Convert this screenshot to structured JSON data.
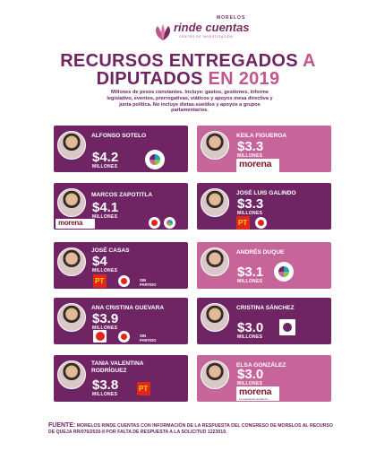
{
  "brand": {
    "top": "MORELOS",
    "name": "rinde cuentas",
    "sub": "CENTRO DE INVESTIGACIÓN"
  },
  "title": {
    "line1_a": "RECURSOS ENTREGADOS",
    "line1_b": "A",
    "line2_a": "DIPUTADOS",
    "line2_b": "EN 2019"
  },
  "description": "Millones de pesos constantes. Incluye: gastos, gestiones, informe legislativo, eventos, prerrogativas, viáticos y apoyos mesa directiva y junta política. No incluye dietas-sueldos y apoyos a grupos parlamentarios.",
  "units": "MILLONES",
  "left": [
    {
      "name": "ALFONSO SOTELO",
      "amount": "$4.2",
      "logos": [
        "movimiento-ciudadano"
      ]
    },
    {
      "name": "MARCOS ZAPOTITLA",
      "amount": "$4.1",
      "logos": [
        "morena",
        "pes",
        "movimiento-ciudadano"
      ]
    },
    {
      "name": "JOSÉ CASAS",
      "amount": "$4",
      "logos": [
        "pt",
        "pes"
      ],
      "extra": "SIN PARTIDO"
    },
    {
      "name": "ANA CRISTINA GUEVARA",
      "amount": "$3.9",
      "logos": [
        "pt-small",
        "pes"
      ],
      "extra": "SIN PARTIDO"
    },
    {
      "name": "TANIA VALENTINA RODRÍGUEZ",
      "amount": "$3.8",
      "logos": [
        "pt"
      ]
    }
  ],
  "right": [
    {
      "name": "KEILA FIGUEROA",
      "amount": "$3.3",
      "logos": [
        "morena"
      ]
    },
    {
      "name": "JOSÉ LUIS GALINDO",
      "amount": "$3.3",
      "logos": [
        "pt",
        "pes"
      ]
    },
    {
      "name": "ANDRÉS DUQUE",
      "amount": "$3.1",
      "logos": [
        "movimiento-ciudadano"
      ]
    },
    {
      "name": "CRISTINA SÁNCHEZ",
      "amount": "$3.0",
      "logos": [
        "encuentro"
      ]
    },
    {
      "name": "ELSA GONZÁLEZ",
      "amount": "$3.0",
      "logos": [
        "morena"
      ]
    }
  ],
  "morena": {
    "word": "morena",
    "tag": "La esperanza de México"
  },
  "pt_label": "PT",
  "footer": {
    "label": "FUENTE:",
    "text": "MORELOS RINDE CUENTAS CON INFORMACIÓN DE LA RESPUESTA DEL CONGRESO DE MORELOS AL RECURSO DE QUEJA RR/076/2020-II POR FALTA DE RESPUESTA A LA SOLICITUD 1223019."
  }
}
